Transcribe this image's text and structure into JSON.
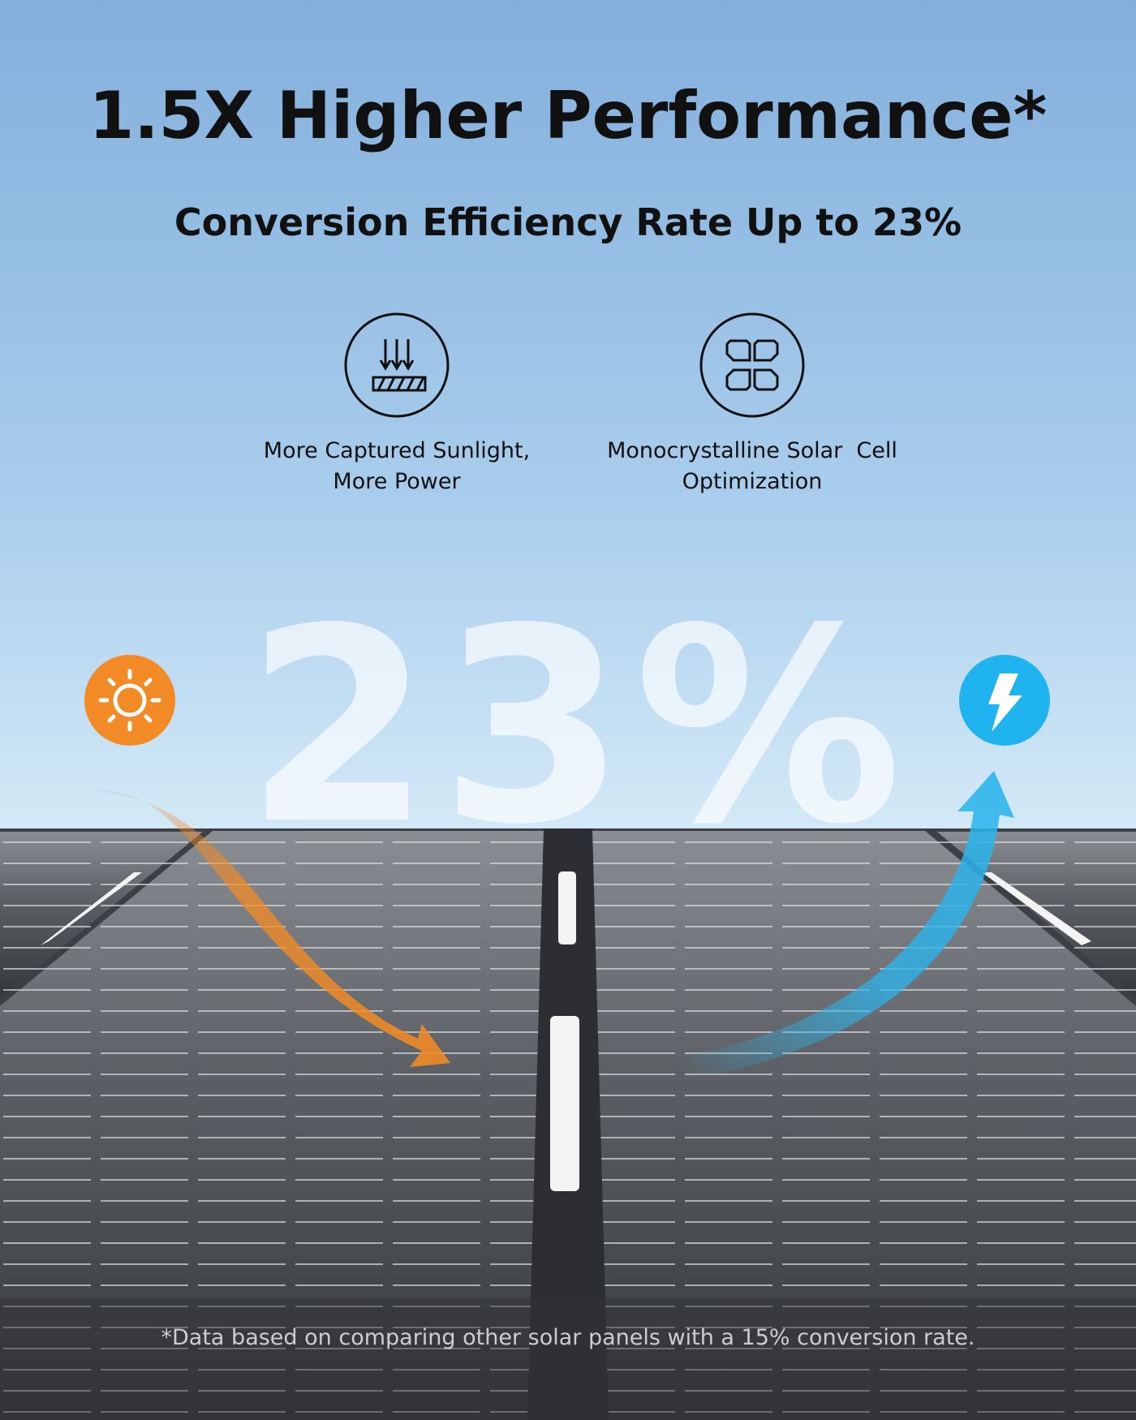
{
  "header": {
    "title": "1.5X Higher Performance*",
    "subtitle": "Conversion Efficiency Rate Up to 23%"
  },
  "features": [
    {
      "lines": [
        "More Captured Sunlight,",
        "More Power"
      ]
    },
    {
      "lines": [
        "Monocrystalline Solar  Cell",
        "Optimization"
      ]
    }
  ],
  "big_stat": "23%",
  "footnote": "*Data based on comparing other solar panels with a 15% conversion rate."
}
